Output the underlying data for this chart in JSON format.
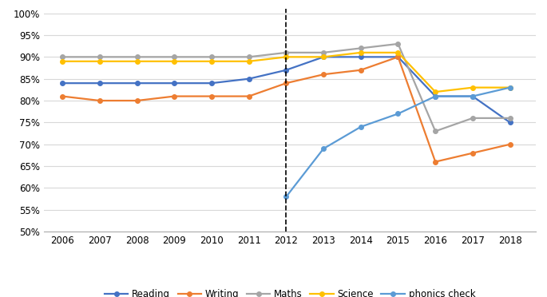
{
  "years": [
    2006,
    2007,
    2008,
    2009,
    2010,
    2011,
    2012,
    2013,
    2014,
    2015,
    2016,
    2017,
    2018
  ],
  "reading": [
    84,
    84,
    84,
    84,
    84,
    85,
    87,
    90,
    90,
    90,
    81,
    81,
    75
  ],
  "writing": [
    81,
    80,
    80,
    81,
    81,
    81,
    84,
    86,
    87,
    90,
    66,
    68,
    70
  ],
  "maths": [
    90,
    90,
    90,
    90,
    90,
    90,
    91,
    91,
    92,
    93,
    73,
    76,
    76
  ],
  "science": [
    89,
    89,
    89,
    89,
    89,
    89,
    90,
    90,
    91,
    91,
    82,
    83,
    83
  ],
  "phonics_check": [
    null,
    null,
    null,
    null,
    null,
    null,
    58,
    69,
    74,
    77,
    81,
    81,
    83
  ],
  "colors": {
    "reading": "#4472C4",
    "writing": "#ED7D31",
    "maths": "#A5A5A5",
    "science": "#FFC000",
    "phonics_check": "#5B9BD5"
  },
  "ylim_low": 50,
  "ylim_high": 101,
  "yticks": [
    50,
    55,
    60,
    65,
    70,
    75,
    80,
    85,
    90,
    95,
    100
  ],
  "dashed_line_x": 2012,
  "legend_labels": [
    "Reading",
    "Writing",
    "Maths",
    "Science",
    "phonics check"
  ],
  "background_color": "#ffffff",
  "grid_color": "#D8D8D8",
  "marker_size": 4,
  "line_width": 1.6,
  "tick_fontsize": 8.5,
  "legend_fontsize": 8.5
}
